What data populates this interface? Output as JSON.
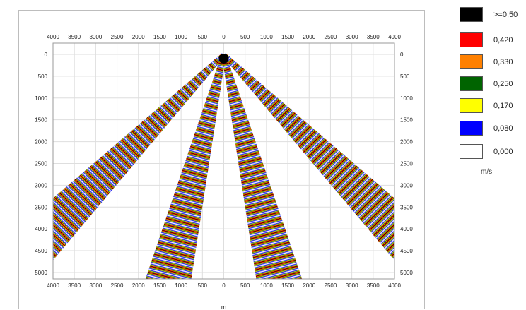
{
  "chart_data": {
    "type": "heatmap",
    "title": "",
    "xlabel": "m",
    "ylabel": "",
    "x_ticks": [
      4000,
      3500,
      3000,
      2500,
      2000,
      1500,
      1000,
      500,
      0,
      500,
      1000,
      1500,
      2000,
      2500,
      3000,
      3500,
      4000
    ],
    "y_ticks": [
      0,
      500,
      1000,
      1500,
      2000,
      2500,
      3000,
      3500,
      4000,
      4500,
      5000
    ],
    "xlim": [
      -4000,
      4000
    ],
    "ylim": [
      0,
      5000
    ],
    "grid": true,
    "colorbar": {
      "unit": "m/s",
      "levels": [
        {
          "label": ">=0,50",
          "value": 0.5,
          "color": "#000000"
        },
        {
          "label": "0,420",
          "value": 0.42,
          "color": "#ff0000"
        },
        {
          "label": "0,330",
          "value": 0.33,
          "color": "#ff8000"
        },
        {
          "label": "0,250",
          "value": 0.25,
          "color": "#006400"
        },
        {
          "label": "0,170",
          "value": 0.17,
          "color": "#ffff00"
        },
        {
          "label": "0,080",
          "value": 0.08,
          "color": "#0000ff"
        },
        {
          "label": "0,000",
          "value": 0.0,
          "color": "#ffffff"
        }
      ]
    },
    "beams": [
      {
        "name": "outer-left",
        "from": [
          0,
          0
        ],
        "to": [
          -4000,
          3950
        ],
        "peak_value": 0.5
      },
      {
        "name": "inner-left",
        "from": [
          0,
          0
        ],
        "to": [
          -1250,
          5000
        ],
        "peak_value": 0.5
      },
      {
        "name": "inner-right",
        "from": [
          0,
          0
        ],
        "to": [
          1250,
          5000
        ],
        "peak_value": 0.5
      },
      {
        "name": "outer-right",
        "from": [
          0,
          0
        ],
        "to": [
          4000,
          3950
        ],
        "peak_value": 0.5
      }
    ]
  }
}
